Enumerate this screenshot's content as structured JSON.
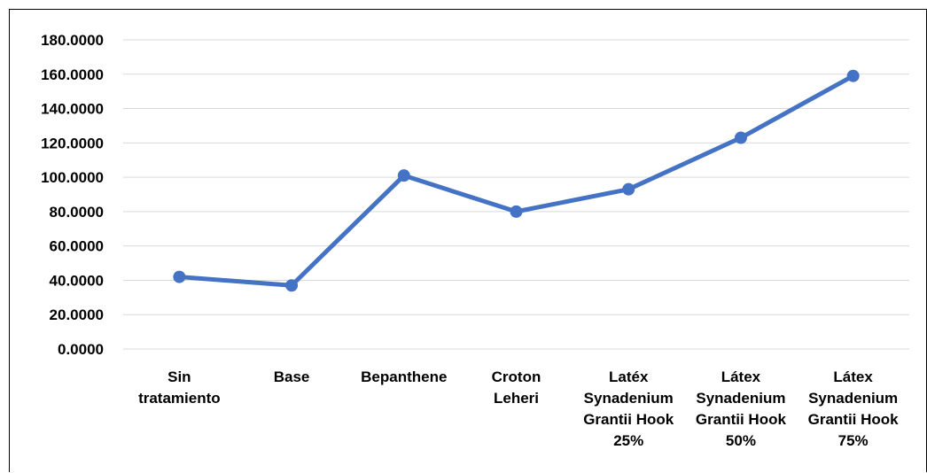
{
  "chart_data": {
    "type": "line",
    "title": "",
    "xlabel": "",
    "ylabel": "",
    "categories": [
      [
        "Sin",
        "tratamiento"
      ],
      [
        "Base"
      ],
      [
        "Bepanthene"
      ],
      [
        "Croton",
        "Leheri"
      ],
      [
        "Latéx",
        "Synadenium",
        "Grantii Hook",
        "25%"
      ],
      [
        "Látex",
        "Synadenium",
        "Grantii Hook",
        "50%"
      ],
      [
        "Látex",
        "Synadenium",
        "Grantii Hook",
        "75%"
      ]
    ],
    "series": [
      {
        "values": [
          42,
          37,
          101,
          80,
          93,
          123,
          159
        ]
      }
    ],
    "ylim": [
      0,
      180
    ],
    "yticks": [
      "0.0000",
      "20.0000",
      "40.0000",
      "60.0000",
      "80.0000",
      "100.0000",
      "120.0000",
      "140.0000",
      "160.0000",
      "180.0000"
    ],
    "grid": true,
    "legend": "none",
    "line_color": "#4472c4"
  }
}
